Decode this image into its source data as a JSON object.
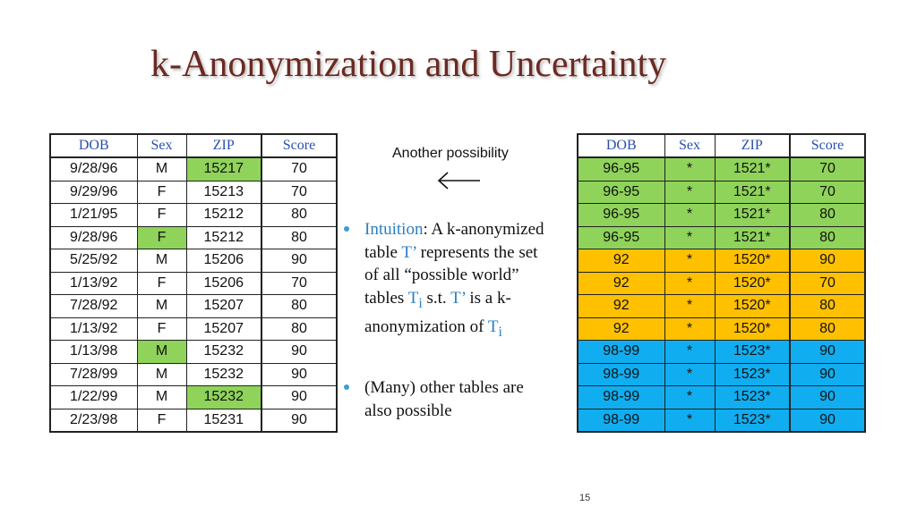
{
  "title": "k-Anonymization and Uncertainty",
  "left_table": {
    "headers": [
      "DOB",
      "Sex",
      "ZIP",
      "Score"
    ],
    "rows": [
      [
        "9/28/96",
        "M",
        "15217",
        "70"
      ],
      [
        "9/29/96",
        "F",
        "15213",
        "70"
      ],
      [
        "1/21/95",
        "F",
        "15212",
        "80"
      ],
      [
        "9/28/96",
        "F",
        "15212",
        "80"
      ],
      [
        "5/25/92",
        "M",
        "15206",
        "90"
      ],
      [
        "1/13/92",
        "F",
        "15206",
        "70"
      ],
      [
        "7/28/92",
        "M",
        "15207",
        "80"
      ],
      [
        "1/13/92",
        "F",
        "15207",
        "80"
      ],
      [
        "1/13/98",
        "M",
        "15232",
        "90"
      ],
      [
        "7/28/99",
        "M",
        "15232",
        "90"
      ],
      [
        "1/22/99",
        "M",
        "15232",
        "90"
      ],
      [
        "2/23/98",
        "F",
        "15231",
        "90"
      ]
    ],
    "highlight_color": "#8fd35a"
  },
  "right_table": {
    "headers": [
      "DOB",
      "Sex",
      "ZIP",
      "Score"
    ],
    "rows": [
      [
        "96-95",
        "*",
        "1521*",
        "70"
      ],
      [
        "96-95",
        "*",
        "1521*",
        "70"
      ],
      [
        "96-95",
        "*",
        "1521*",
        "80"
      ],
      [
        "96-95",
        "*",
        "1521*",
        "80"
      ],
      [
        "92",
        "*",
        "1520*",
        "90"
      ],
      [
        "92",
        "*",
        "1520*",
        "70"
      ],
      [
        "92",
        "*",
        "1520*",
        "80"
      ],
      [
        "92",
        "*",
        "1520*",
        "80"
      ],
      [
        "98-99",
        "*",
        "1523*",
        "90"
      ],
      [
        "98-99",
        "*",
        "1523*",
        "90"
      ],
      [
        "98-99",
        "*",
        "1523*",
        "90"
      ],
      [
        "98-99",
        "*",
        "1523*",
        "90"
      ]
    ],
    "group_colors": [
      "#8fd35a",
      "#ffc000",
      "#10aef0"
    ]
  },
  "another_possibility": "Another possibility",
  "arrow_icon": "left-arrow-icon",
  "bullet1": {
    "term": "Intuition",
    "text_a": ": A k-anonymized table ",
    "t_prime_1": "T’",
    "text_b": " represents the set of all “possible world” tables ",
    "t_i_base": "T",
    "t_i_sub": "i",
    "text_c": " s.t. ",
    "t_prime_2": "T’",
    "text_d": " is a k-anonymization of ",
    "t_i2_base": "T",
    "t_i2_sub": "i"
  },
  "bullet2": {
    "text": "(Many) other tables are also possible"
  },
  "page_number": "15"
}
